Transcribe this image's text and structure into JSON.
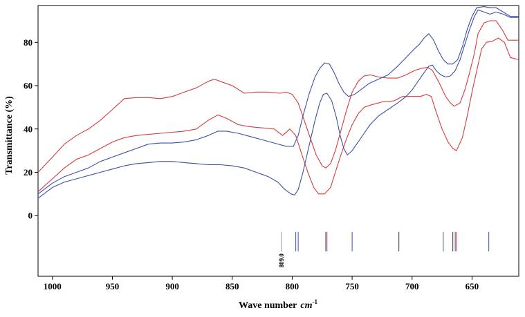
{
  "chart_data": {
    "type": "line",
    "xlabel": "Wave number",
    "xlabel_unit": "cm",
    "xlabel_unit_exp": "-1",
    "ylabel": "Transmittance (%)",
    "xlim": [
      1012,
      611
    ],
    "ylim": [
      -28,
      97
    ],
    "x_reversed": true,
    "x_ticks": [
      1000,
      950,
      900,
      850,
      800,
      750,
      700,
      650
    ],
    "y_ticks": [
      0,
      20,
      40,
      60,
      80
    ],
    "grid": false,
    "legend": "none",
    "series": [
      {
        "color": "#d63a3a",
        "points": [
          [
            1012,
            20
          ],
          [
            1000,
            27
          ],
          [
            990,
            33
          ],
          [
            980,
            37
          ],
          [
            970,
            40
          ],
          [
            960,
            44
          ],
          [
            950,
            49
          ],
          [
            940,
            54
          ],
          [
            930,
            54.5
          ],
          [
            920,
            54.5
          ],
          [
            910,
            54
          ],
          [
            900,
            55
          ],
          [
            890,
            57
          ],
          [
            880,
            59
          ],
          [
            870,
            62
          ],
          [
            865,
            63
          ],
          [
            860,
            62
          ],
          [
            850,
            60
          ],
          [
            840,
            56.5
          ],
          [
            830,
            57
          ],
          [
            820,
            57
          ],
          [
            810,
            56.5
          ],
          [
            805,
            57
          ],
          [
            800,
            56
          ],
          [
            795,
            52
          ],
          [
            790,
            44
          ],
          [
            785,
            36
          ],
          [
            780,
            28
          ],
          [
            775,
            23
          ],
          [
            772,
            22
          ],
          [
            768,
            24
          ],
          [
            764,
            30
          ],
          [
            760,
            38
          ],
          [
            755,
            48
          ],
          [
            750,
            57
          ],
          [
            745,
            62
          ],
          [
            740,
            64.5
          ],
          [
            735,
            65
          ],
          [
            728,
            64
          ],
          [
            720,
            63.5
          ],
          [
            712,
            63.5
          ],
          [
            705,
            65
          ],
          [
            698,
            67
          ],
          [
            692,
            68
          ],
          [
            687,
            68.5
          ],
          [
            683,
            67
          ],
          [
            678,
            62
          ],
          [
            672,
            55
          ],
          [
            668,
            52
          ],
          [
            665,
            50.5
          ],
          [
            660,
            52
          ],
          [
            656,
            58
          ],
          [
            652,
            66
          ],
          [
            648,
            75
          ],
          [
            645,
            84
          ],
          [
            640,
            89
          ],
          [
            635,
            90
          ],
          [
            630,
            90
          ],
          [
            625,
            86
          ],
          [
            620,
            81
          ],
          [
            611,
            81
          ]
        ]
      },
      {
        "color": "#d63a3a",
        "points": [
          [
            1012,
            11
          ],
          [
            1000,
            17
          ],
          [
            990,
            22
          ],
          [
            980,
            26
          ],
          [
            970,
            28
          ],
          [
            960,
            31
          ],
          [
            950,
            34
          ],
          [
            940,
            36
          ],
          [
            930,
            37
          ],
          [
            920,
            37.5
          ],
          [
            910,
            38
          ],
          [
            900,
            38.5
          ],
          [
            890,
            39
          ],
          [
            880,
            40
          ],
          [
            870,
            44
          ],
          [
            862,
            46.5
          ],
          [
            855,
            45
          ],
          [
            845,
            42
          ],
          [
            835,
            41
          ],
          [
            825,
            40.5
          ],
          [
            815,
            40
          ],
          [
            808,
            37
          ],
          [
            802,
            40
          ],
          [
            797,
            37
          ],
          [
            793,
            30
          ],
          [
            787,
            20
          ],
          [
            782,
            13
          ],
          [
            778,
            10
          ],
          [
            773,
            10
          ],
          [
            768,
            13
          ],
          [
            764,
            20
          ],
          [
            760,
            27
          ],
          [
            755,
            35
          ],
          [
            750,
            42
          ],
          [
            745,
            47
          ],
          [
            740,
            50
          ],
          [
            735,
            51
          ],
          [
            725,
            52.5
          ],
          [
            715,
            53
          ],
          [
            708,
            55
          ],
          [
            700,
            55
          ],
          [
            693,
            55
          ],
          [
            688,
            56
          ],
          [
            684,
            55
          ],
          [
            680,
            48
          ],
          [
            675,
            40
          ],
          [
            670,
            34
          ],
          [
            666,
            31
          ],
          [
            663,
            30
          ],
          [
            658,
            36
          ],
          [
            654,
            46
          ],
          [
            650,
            57
          ],
          [
            646,
            67
          ],
          [
            642,
            77
          ],
          [
            638,
            80
          ],
          [
            633,
            80.5
          ],
          [
            628,
            82
          ],
          [
            623,
            80
          ],
          [
            618,
            73
          ],
          [
            611,
            72
          ]
        ]
      },
      {
        "color": "#3b4fa6",
        "points": [
          [
            1012,
            8
          ],
          [
            1000,
            13
          ],
          [
            990,
            15.5
          ],
          [
            980,
            17
          ],
          [
            970,
            18.5
          ],
          [
            960,
            20
          ],
          [
            950,
            21.5
          ],
          [
            940,
            23
          ],
          [
            930,
            24
          ],
          [
            920,
            24.5
          ],
          [
            910,
            25
          ],
          [
            900,
            25
          ],
          [
            890,
            24.5
          ],
          [
            880,
            24
          ],
          [
            870,
            23.5
          ],
          [
            860,
            23.5
          ],
          [
            850,
            23
          ],
          [
            840,
            22
          ],
          [
            830,
            20
          ],
          [
            820,
            18
          ],
          [
            812,
            15.5
          ],
          [
            806,
            12
          ],
          [
            801,
            10
          ],
          [
            798,
            9.5
          ],
          [
            795,
            12
          ],
          [
            791,
            20
          ],
          [
            786,
            32
          ],
          [
            781,
            44
          ],
          [
            777,
            52
          ],
          [
            774,
            56
          ],
          [
            771,
            56.5
          ],
          [
            767,
            53
          ],
          [
            763,
            45
          ],
          [
            760,
            37
          ],
          [
            757,
            31
          ],
          [
            754,
            28
          ],
          [
            750,
            30
          ],
          [
            745,
            34
          ],
          [
            740,
            38
          ],
          [
            735,
            42
          ],
          [
            728,
            46
          ],
          [
            720,
            49
          ],
          [
            712,
            52
          ],
          [
            705,
            55
          ],
          [
            700,
            58
          ],
          [
            695,
            62
          ],
          [
            690,
            66
          ],
          [
            686,
            69
          ],
          [
            683,
            69.5
          ],
          [
            680,
            67
          ],
          [
            676,
            65
          ],
          [
            672,
            64
          ],
          [
            668,
            64.5
          ],
          [
            664,
            67
          ],
          [
            660,
            72
          ],
          [
            656,
            79
          ],
          [
            652,
            86
          ],
          [
            648,
            92
          ],
          [
            645,
            95
          ],
          [
            640,
            94
          ],
          [
            635,
            93
          ],
          [
            630,
            94
          ],
          [
            624,
            93
          ],
          [
            618,
            91.5
          ],
          [
            611,
            91.5
          ]
        ]
      },
      {
        "color": "#3b4fa6",
        "points": [
          [
            1012,
            10
          ],
          [
            1000,
            15
          ],
          [
            990,
            18
          ],
          [
            980,
            20
          ],
          [
            970,
            22
          ],
          [
            960,
            25
          ],
          [
            950,
            27
          ],
          [
            940,
            29
          ],
          [
            930,
            31
          ],
          [
            920,
            33
          ],
          [
            910,
            33.5
          ],
          [
            900,
            33.5
          ],
          [
            890,
            34
          ],
          [
            880,
            35
          ],
          [
            870,
            37
          ],
          [
            862,
            39
          ],
          [
            855,
            39
          ],
          [
            845,
            38
          ],
          [
            835,
            36.5
          ],
          [
            825,
            35
          ],
          [
            815,
            33.5
          ],
          [
            805,
            32
          ],
          [
            799,
            32
          ],
          [
            795,
            37
          ],
          [
            791,
            46
          ],
          [
            786,
            56
          ],
          [
            781,
            64
          ],
          [
            777,
            68
          ],
          [
            773,
            70.5
          ],
          [
            769,
            70
          ],
          [
            765,
            66
          ],
          [
            761,
            61
          ],
          [
            757,
            57
          ],
          [
            753,
            55
          ],
          [
            748,
            56
          ],
          [
            743,
            58
          ],
          [
            736,
            61
          ],
          [
            728,
            63
          ],
          [
            720,
            65
          ],
          [
            712,
            69
          ],
          [
            705,
            73
          ],
          [
            698,
            77
          ],
          [
            694,
            79
          ],
          [
            690,
            82
          ],
          [
            686,
            84
          ],
          [
            682,
            81
          ],
          [
            678,
            76
          ],
          [
            674,
            72
          ],
          [
            670,
            70
          ],
          [
            666,
            70
          ],
          [
            662,
            72
          ],
          [
            658,
            78
          ],
          [
            654,
            86
          ],
          [
            650,
            92
          ],
          [
            646,
            96
          ],
          [
            640,
            96.5
          ],
          [
            635,
            96
          ],
          [
            630,
            96
          ],
          [
            624,
            94
          ],
          [
            618,
            92
          ],
          [
            611,
            92
          ]
        ]
      }
    ],
    "peak_lines": [
      {
        "x": 809,
        "color": "#999999",
        "label": "809.0"
      },
      {
        "x": 797,
        "color": "#3b4fa6"
      },
      {
        "x": 795,
        "color": "#3b4fa6"
      },
      {
        "x": 772,
        "color": "#3b4fa6"
      },
      {
        "x": 771,
        "color": "#d63a3a"
      },
      {
        "x": 750,
        "color": "#3b4fa6"
      },
      {
        "x": 711,
        "color": "#333333"
      },
      {
        "x": 674,
        "color": "#3b4fa6"
      },
      {
        "x": 666,
        "color": "#333333"
      },
      {
        "x": 664,
        "color": "#3b4fa6"
      },
      {
        "x": 663,
        "color": "#d63a3a"
      },
      {
        "x": 636,
        "color": "#3b4fa6"
      }
    ]
  }
}
